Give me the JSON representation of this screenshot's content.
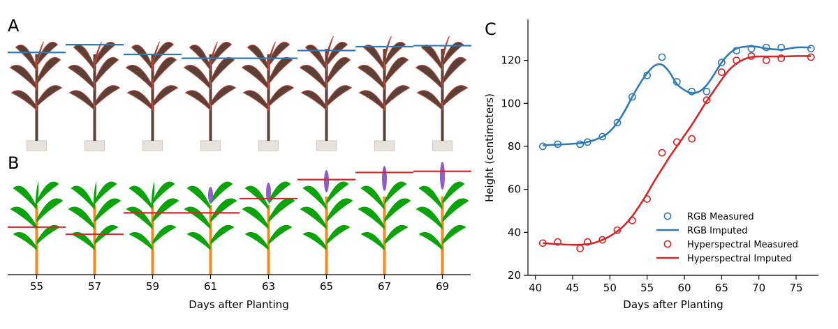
{
  "panels": {
    "a_label": "A",
    "b_label": "B",
    "c_label": "C",
    "ab_xlabel": "Days after Planting",
    "days": [
      "55",
      "57",
      "59",
      "61",
      "63",
      "65",
      "67",
      "69"
    ],
    "rgb_heights": [
      119,
      127,
      117,
      113,
      113,
      121,
      125,
      126
    ],
    "hyper_heights": [
      60,
      54,
      72,
      72,
      84,
      100,
      106,
      107
    ],
    "height_ylim": [
      20,
      135
    ]
  },
  "chart_data": {
    "type": "scatter",
    "title": "",
    "xlabel": "Days after Planting",
    "ylabel": "Height (centimeters)",
    "xlim": [
      39,
      78
    ],
    "ylim": [
      20,
      139
    ],
    "xticks": [
      40,
      45,
      50,
      55,
      60,
      65,
      70,
      75
    ],
    "yticks": [
      20,
      40,
      60,
      80,
      100,
      120
    ],
    "legend_position": "bottom-right",
    "series": [
      {
        "name": "RGB Measured",
        "kind": "points",
        "color": "#2e7ab6",
        "x": [
          41,
          43,
          46,
          47,
          49,
          51,
          53,
          55,
          57,
          59,
          61,
          63,
          65,
          67,
          69,
          71,
          73,
          77
        ],
        "y": [
          80,
          81,
          81,
          82,
          84.5,
          91,
          103,
          113,
          121.5,
          110,
          105.5,
          105.5,
          119,
          124.5,
          125.5,
          126,
          126,
          125.5
        ]
      },
      {
        "name": "RGB Imputed",
        "kind": "line",
        "color": "#2e7ab6",
        "x": [
          41,
          43,
          45,
          47,
          49,
          50,
          51,
          52,
          53,
          54,
          55,
          56,
          57,
          58,
          59,
          60,
          61,
          62,
          63,
          64,
          65,
          66,
          67,
          68,
          69,
          70,
          71,
          73,
          75,
          77
        ],
        "y": [
          80.5,
          80.8,
          81.2,
          82,
          84.5,
          87,
          91,
          96.5,
          103,
          109,
          114,
          117.5,
          118,
          114.5,
          109,
          106.2,
          104.8,
          105.5,
          108.5,
          113.5,
          119,
          123,
          125.5,
          126.3,
          126.5,
          126.2,
          125.5,
          125,
          126,
          126
        ]
      },
      {
        "name": "Hyperspectral Measured",
        "kind": "points",
        "color": "#d62728",
        "x": [
          41,
          43,
          46,
          47,
          49,
          51,
          53,
          55,
          57,
          59,
          61,
          63,
          65,
          67,
          69,
          71,
          73,
          77
        ],
        "y": [
          35,
          35.5,
          32.5,
          35.5,
          36.5,
          41,
          45.5,
          55.5,
          77,
          82,
          83.5,
          101.5,
          114.5,
          120,
          122,
          120,
          121,
          121.5
        ]
      },
      {
        "name": "Hyperspectral Imputed",
        "kind": "line",
        "color": "#d62728",
        "x": [
          41,
          43,
          45,
          47,
          48,
          49,
          50,
          51,
          52,
          53,
          54,
          55,
          56,
          57,
          58,
          59,
          60,
          61,
          62,
          63,
          64,
          65,
          66,
          67,
          68,
          69,
          70,
          71,
          73,
          75,
          77
        ],
        "y": [
          35,
          34.5,
          34.2,
          34.5,
          35.2,
          36.5,
          38.2,
          40.5,
          43.5,
          47.5,
          52.5,
          58,
          64,
          69.5,
          75,
          80,
          85,
          90,
          95.5,
          101,
          106,
          111,
          115.5,
          118.5,
          120.5,
          121.5,
          121.8,
          121.8,
          121.8,
          122,
          122
        ]
      }
    ]
  },
  "colors": {
    "rgb": "#2e7ab6",
    "hyper": "#d62728",
    "leaf_green": "#0aa30a",
    "stem_orange": "#f58a1f",
    "tassel_purple": "#8e5fc4",
    "photo_plant": "#5a4036",
    "photo_edge": "#c24a3d",
    "pot": "#e8e2dc"
  }
}
